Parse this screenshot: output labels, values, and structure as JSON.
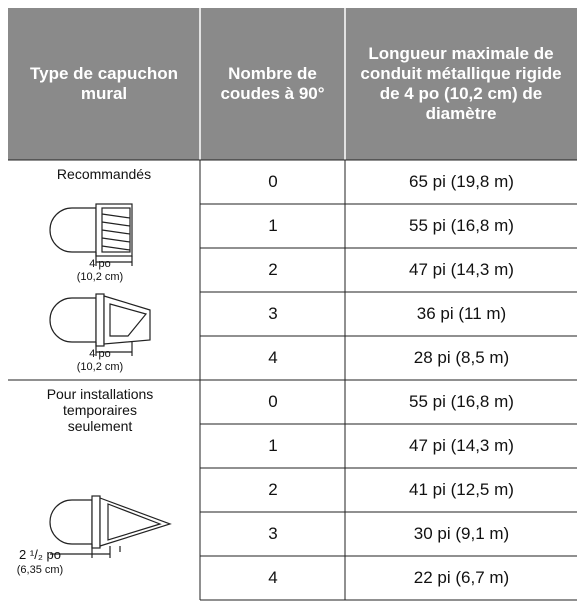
{
  "header": [
    "Type de capuchon mural",
    "Nombre de coudes à 90°",
    "Longueur maximale de conduit métallique rigide de 4 po (10,2 cm) de diamètre"
  ],
  "groups": [
    {
      "label": "Recommandés",
      "dimensions": [
        "4 po",
        "(10,2 cm)",
        "4 po",
        "(10,2 cm)"
      ],
      "rows": [
        [
          "0",
          "65 pi (19,8 m)"
        ],
        [
          "1",
          "55 pi (16,8 m)"
        ],
        [
          "2",
          "47 pi (14,3 m)"
        ],
        [
          "3",
          "36 pi (11 m)"
        ],
        [
          "4",
          "28 pi (8,5 m)"
        ]
      ]
    },
    {
      "label": "Pour installations temporaires seulement",
      "dimensions": [
        "2 ¹/₂ po",
        "(6,35 cm)"
      ],
      "rows": [
        [
          "0",
          "55 pi (16,8 m)"
        ],
        [
          "1",
          "47 pi (14,3 m)"
        ],
        [
          "2",
          "41 pi (12,5 m)"
        ],
        [
          "3",
          "30 pi (9,1 m)"
        ],
        [
          "4",
          "22 pi (6,7 m)"
        ]
      ]
    }
  ]
}
